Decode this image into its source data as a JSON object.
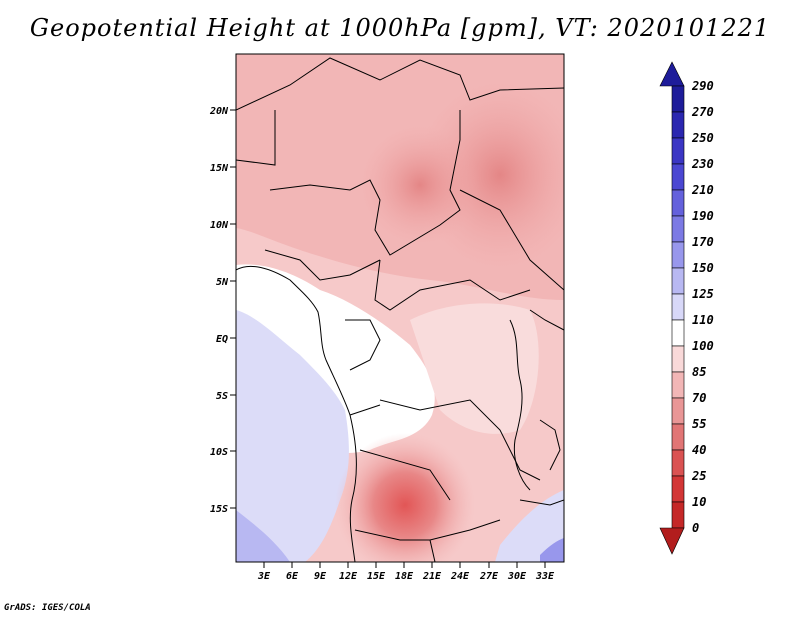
{
  "title": "Geopotential Height at 1000hPa [gpm], VT: 2020101221",
  "footer": "GrADS: IGES/COLA",
  "map": {
    "lat_labels": [
      "20N",
      "15N",
      "10N",
      "5N",
      "EQ",
      "5S",
      "10S",
      "15S"
    ],
    "lon_labels": [
      "3E",
      "6E",
      "9E",
      "12E",
      "15E",
      "18E",
      "21E",
      "24E",
      "27E",
      "30E",
      "33E"
    ]
  },
  "colorbar": {
    "levels": [
      "290",
      "270",
      "250",
      "230",
      "210",
      "190",
      "170",
      "150",
      "125",
      "110",
      "100",
      "85",
      "70",
      "55",
      "40",
      "25",
      "10",
      "0"
    ],
    "colors": {
      "c290": "#1e1c9a",
      "c270": "#2b27b0",
      "c250": "#3b36c4",
      "c230": "#4b47d2",
      "c210": "#6461dc",
      "c190": "#7c7ae4",
      "c170": "#9897ec",
      "c150": "#b8b8f2",
      "c125": "#d8d8f8",
      "c110": "#ffffff",
      "c100": "#f9d9d9",
      "c85": "#f2b6b6",
      "c70": "#e99696",
      "c55": "#e17575",
      "c40": "#da5252",
      "c25": "#d33636",
      "c10": "#c52828",
      "c0": "#b21d1d"
    }
  }
}
